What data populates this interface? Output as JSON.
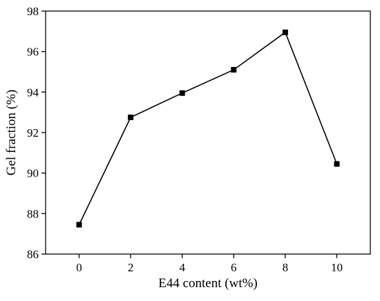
{
  "chart_data": {
    "type": "line",
    "title": "",
    "xlabel": "E44 content (wt%)",
    "ylabel": "Gel fraction (%)",
    "xlim": [
      -1.3,
      11.3
    ],
    "ylim": [
      86,
      98
    ],
    "xticks": [
      0,
      2,
      4,
      6,
      8,
      10
    ],
    "yticks": [
      86,
      88,
      90,
      92,
      94,
      96,
      98
    ],
    "grid": false,
    "legend": "none",
    "series": [
      {
        "x": [
          0,
          2,
          4,
          6,
          8,
          10
        ],
        "values": [
          87.45,
          92.75,
          93.95,
          95.1,
          96.95,
          90.45
        ],
        "marker": "square",
        "color": "#000000"
      }
    ]
  }
}
